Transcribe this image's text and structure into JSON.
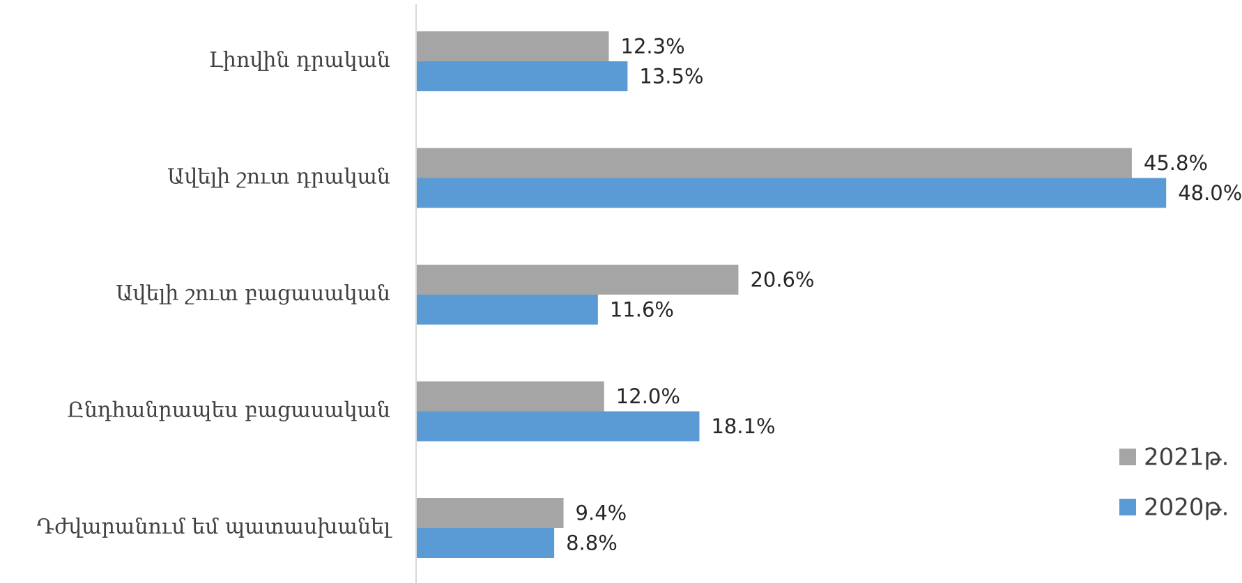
{
  "chart_data": {
    "type": "bar",
    "orientation": "horizontal",
    "categories": [
      "Լիովին դրական",
      "Ավելի շուտ դրական",
      "Ավելի շուտ բացասական",
      "Ընդհանրապես բացասական",
      "Դժվարանում եմ պատասխանել"
    ],
    "series": [
      {
        "name": "2021թ.",
        "color": "#a5a5a5",
        "values": [
          12.3,
          45.8,
          20.6,
          12.0,
          9.4
        ],
        "labels": [
          "12.3%",
          "45.8%",
          "20.6%",
          "12.0%",
          "9.4%"
        ]
      },
      {
        "name": "2020թ.",
        "color": "#5b9bd5",
        "values": [
          13.5,
          48.0,
          11.6,
          18.1,
          8.8
        ],
        "labels": [
          "13.5%",
          "48.0%",
          "11.6%",
          "18.1%",
          "8.8%"
        ]
      }
    ],
    "xlim": [
      0,
      50
    ],
    "grid": false,
    "legend": "bottom-right",
    "axis_color": "#d9d9d9"
  }
}
